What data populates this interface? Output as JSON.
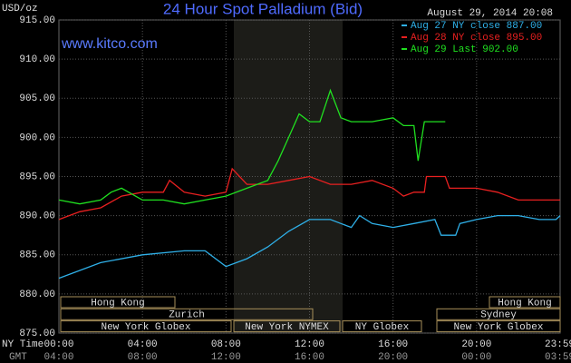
{
  "chart_data": {
    "type": "line",
    "title": "24 Hour Spot Palladium (Bid)",
    "website": "www.kitco.com",
    "timestamp": "August 29, 2014 20:08",
    "y_unit": "USD/oz",
    "x_row_label": "NY Time",
    "x2_row_label": "GMT",
    "xlim": [
      0,
      24
    ],
    "xticks": [
      {
        "value": 0,
        "label": "00:00"
      },
      {
        "value": 4,
        "label": "04:00"
      },
      {
        "value": 8,
        "label": "08:00"
      },
      {
        "value": 12,
        "label": "12:00"
      },
      {
        "value": 16,
        "label": "16:00"
      },
      {
        "value": 20,
        "label": "20:00"
      },
      {
        "value": 23.98,
        "label": "23:59"
      }
    ],
    "x2_labels": [
      "04:00",
      "08:00",
      "12:00",
      "16:00",
      "20:00",
      "00:00",
      "03:59"
    ],
    "ylim": [
      875,
      915
    ],
    "yticks": [
      {
        "value": 875,
        "label": "875.00"
      },
      {
        "value": 880,
        "label": "880.00"
      },
      {
        "value": 885,
        "label": "885.00"
      },
      {
        "value": 890,
        "label": "890.00"
      },
      {
        "value": 895,
        "label": "895.00"
      },
      {
        "value": 900,
        "label": "900.00"
      },
      {
        "value": 905,
        "label": "905.00"
      },
      {
        "value": 910,
        "label": "910.00"
      },
      {
        "value": 915,
        "label": "915.00"
      }
    ],
    "grid": true,
    "sessions": [
      "Hong Kong",
      "Hong Kong",
      "Zurich",
      "Sydney",
      "New York Globex",
      "New York NYMEX",
      "NY Globex",
      "New York Globex"
    ],
    "series": [
      {
        "name": "Aug 27 NY close 887.00",
        "color": "#2fb0e8",
        "x": [
          0,
          2,
          4,
          6,
          7,
          8,
          9,
          10,
          11,
          12,
          13,
          13.5,
          14,
          14.4,
          15,
          16,
          17,
          18,
          18.3,
          19,
          19.2,
          20,
          21,
          22,
          23,
          23.8,
          24
        ],
        "values": [
          882,
          884,
          885,
          885.5,
          885.5,
          883.5,
          884.5,
          886,
          888,
          889.5,
          889.5,
          889,
          888.5,
          890,
          889,
          888.5,
          889,
          889.5,
          887.5,
          887.5,
          889,
          889.5,
          890,
          890,
          889.5,
          889.5,
          890
        ]
      },
      {
        "name": "Aug 28 NY close 895.00",
        "color": "#e82020",
        "x": [
          0,
          1,
          2,
          3,
          4,
          5,
          5.3,
          6,
          7,
          8,
          8.3,
          9,
          10,
          11,
          12,
          13,
          14,
          15,
          16,
          16.5,
          17,
          17.5,
          17.6,
          18.5,
          18.7,
          20,
          21,
          22,
          23,
          24
        ],
        "values": [
          889.5,
          890.5,
          891,
          892.5,
          893,
          893,
          894.5,
          893,
          892.5,
          893,
          896,
          894,
          894,
          894.5,
          895,
          894,
          894,
          894.5,
          893.5,
          892.5,
          893,
          893,
          895,
          895,
          893.5,
          893.5,
          893,
          892,
          892,
          892
        ]
      },
      {
        "name": "Aug 29 Last 902.00",
        "color": "#20e020",
        "x": [
          0,
          1,
          2,
          2.5,
          3,
          4,
          5,
          6,
          7,
          8,
          9,
          10,
          10.5,
          11,
          11.5,
          12,
          12.5,
          13,
          13.5,
          14,
          15,
          16,
          16.5,
          17,
          17.2,
          17.5,
          18,
          18.5
        ],
        "values": [
          892,
          891.5,
          892,
          893,
          893.5,
          892,
          892,
          891.5,
          892,
          892.5,
          893.5,
          894.5,
          897,
          900,
          903,
          902,
          902,
          906,
          902.5,
          902,
          902,
          902.5,
          901.5,
          901.5,
          897,
          902,
          902,
          902
        ]
      }
    ]
  }
}
